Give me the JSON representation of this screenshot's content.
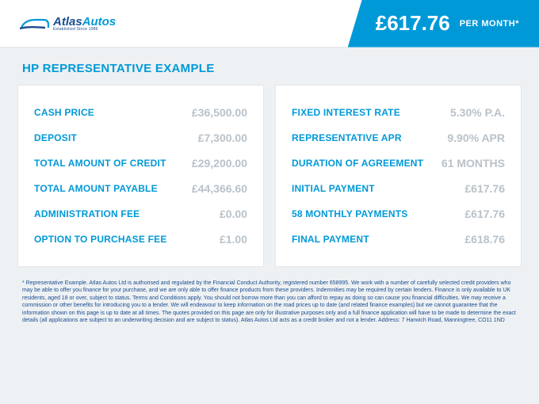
{
  "header": {
    "logo_main_1": "Atlas",
    "logo_main_2": "Autos",
    "logo_sub": "Established Since 1986",
    "price_value": "£617.76",
    "price_unit": "PER MONTH*",
    "accent_color": "#0099d8",
    "logo_dark_color": "#1a4d8f"
  },
  "section_title": "HP REPRESENTATIVE EXAMPLE",
  "left": {
    "rows": [
      {
        "label": "CASH PRICE",
        "value": "£36,500.00"
      },
      {
        "label": "DEPOSIT",
        "value": "£7,300.00"
      },
      {
        "label": "TOTAL AMOUNT OF CREDIT",
        "value": "£29,200.00"
      },
      {
        "label": "TOTAL AMOUNT PAYABLE",
        "value": "£44,366.60"
      },
      {
        "label": "ADMINISTRATION FEE",
        "value": "£0.00"
      },
      {
        "label": "OPTION TO PURCHASE FEE",
        "value": "£1.00"
      }
    ]
  },
  "right": {
    "rows": [
      {
        "label": "FIXED INTEREST RATE",
        "value": "5.30% P.A."
      },
      {
        "label": "REPRESENTATIVE APR",
        "value": "9.90% APR"
      },
      {
        "label": "DURATION OF AGREEMENT",
        "value": "61 MONTHS"
      },
      {
        "label": "INITIAL PAYMENT",
        "value": "£617.76"
      },
      {
        "label": "58 MONTHLY PAYMENTS",
        "value": "£617.76"
      },
      {
        "label": "FINAL PAYMENT",
        "value": "£618.76"
      }
    ]
  },
  "disclaimer": "* Representative Example. Atlas Autos Ltd is authorised and regulated by the Financial Conduct Authority, registered number 658995. We work with a number of carefully selected credit providers who may be able to offer you finance for your purchase, and we are only able to offer finance products from these providers. Indemnities may be required by certain lenders. Finance is only available to UK residents, aged 18 or over, subject to status. Terms and Conditions apply. You should not borrow more than you can afford to repay as doing so can cause you financial difficulties. We may receive a commission or other benefits for introducing you to a lender. We will endeavour to keep information on the road prices up to date (and related finance examples) but we cannot guarantee that the information shown on this page is up to date at all times. The quotes provided on this page are only for illustrative purposes only and a full finance application will have to be made to determine the exact details (all applications are subject to an underwriting decision and are subject to status). Atlas Autos Ltd acts as a credit broker and not a lender. Address: 7 Harwich Road, Manningtree, CO11 1ND",
  "style": {
    "page_bg": "#eef1f3",
    "panel_bg": "#ffffff",
    "panel_border": "#e4e7ea",
    "label_color": "#0099d8",
    "value_color": "#b9c2c9",
    "disclaimer_color": "#1a4d8f",
    "title_fontsize": 15,
    "label_fontsize": 12,
    "value_fontsize": 14,
    "price_fontsize": 26
  }
}
